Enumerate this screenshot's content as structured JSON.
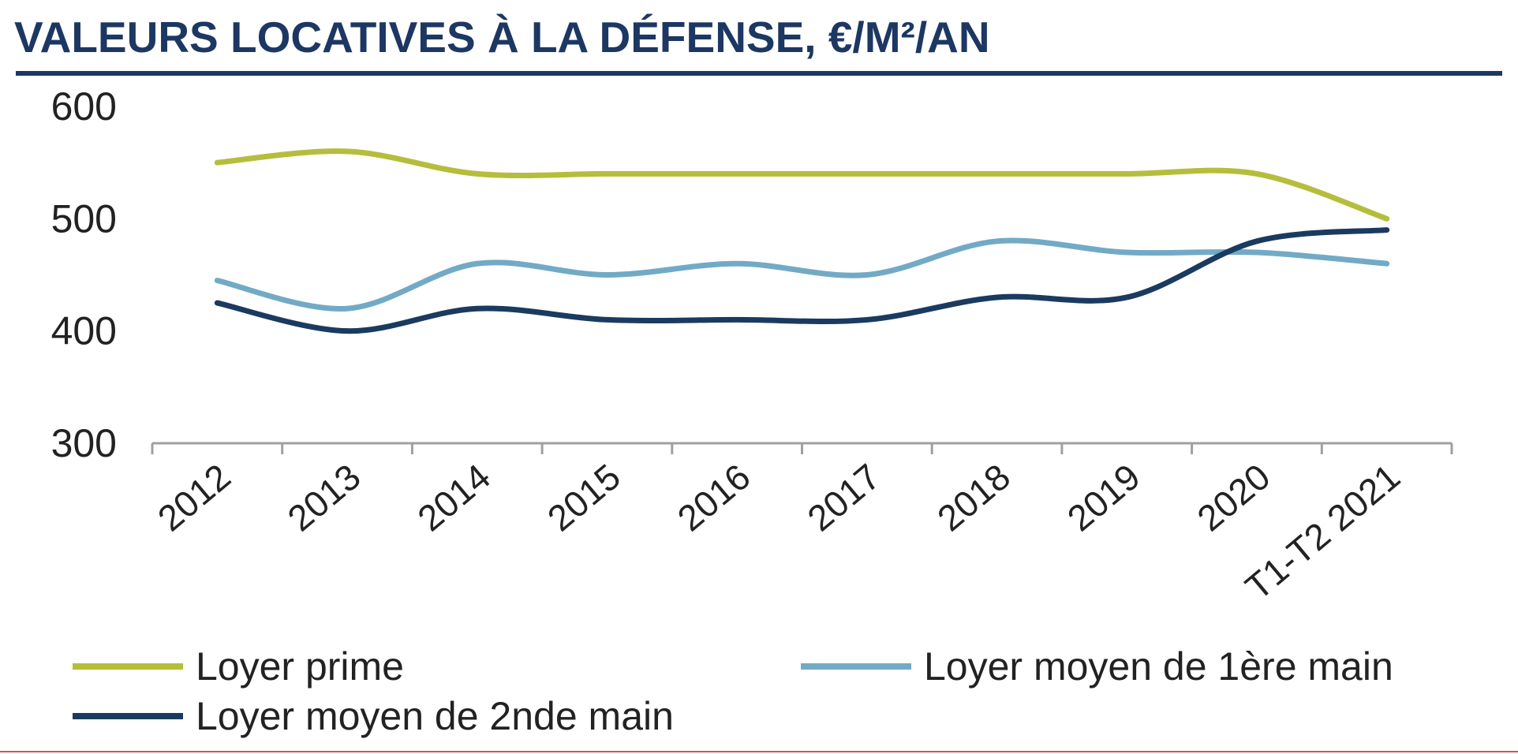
{
  "chart_data": {
    "type": "line",
    "title": "VALEURS LOCATIVES À LA DÉFENSE, €/M²/AN",
    "categories": [
      "2012",
      "2013",
      "2014",
      "2015",
      "2016",
      "2017",
      "2018",
      "2019",
      "2020",
      "T1-T2 2021"
    ],
    "ylim": [
      300,
      600
    ],
    "yticks": [
      300,
      400,
      500,
      600
    ],
    "grid": false,
    "legend_position": "bottom",
    "series": [
      {
        "name": "Loyer prime",
        "color": "#b5be3c",
        "values": [
          550,
          560,
          540,
          540,
          540,
          540,
          540,
          540,
          540,
          500
        ]
      },
      {
        "name": "Loyer moyen de 1ère main",
        "color": "#72aac6",
        "values": [
          445,
          420,
          460,
          450,
          460,
          450,
          480,
          470,
          470,
          460
        ]
      },
      {
        "name": "Loyer moyen de 2nde main",
        "color": "#1b3a60",
        "values": [
          425,
          400,
          420,
          410,
          410,
          410,
          430,
          430,
          480,
          490
        ]
      }
    ]
  },
  "colors": {
    "title": "#1d3763",
    "rule": "#1d3763",
    "axis": "#a0a0a0",
    "text": "#222222",
    "bottom_border": "#d9534f"
  }
}
